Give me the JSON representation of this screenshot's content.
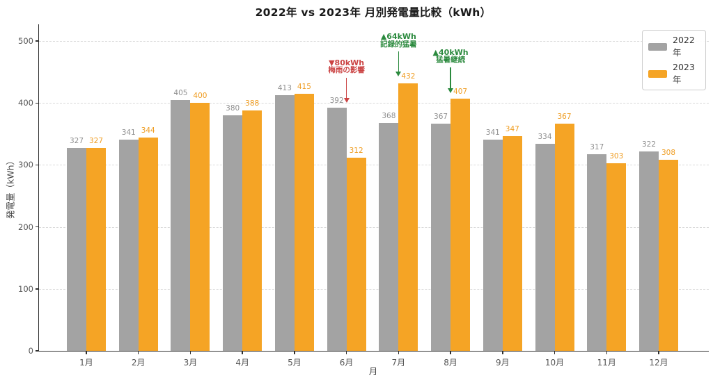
{
  "chart_data": {
    "type": "bar",
    "title": "2022年 vs 2023年 月別発電量比較（kWh）",
    "xlabel": "月",
    "ylabel": "発電量（kWh）",
    "ylim": [
      0,
      527
    ],
    "yticks": [
      0,
      100,
      200,
      300,
      400,
      500
    ],
    "grid": "horizontal-dashed",
    "legend_position": "upper-right",
    "categories": [
      "1月",
      "2月",
      "3月",
      "4月",
      "5月",
      "6月",
      "7月",
      "8月",
      "9月",
      "10月",
      "11月",
      "12月"
    ],
    "series": [
      {
        "name": "2022年",
        "color": "#a3a3a3",
        "label_color": "#8f8f8f",
        "values": [
          327,
          341,
          405,
          380,
          413,
          392,
          368,
          367,
          341,
          334,
          317,
          322
        ]
      },
      {
        "name": "2023年",
        "color": "#f5a425",
        "label_color": "#ef9c20",
        "values": [
          327,
          344,
          400,
          388,
          415,
          312,
          432,
          407,
          347,
          367,
          303,
          308
        ]
      }
    ],
    "annotations": [
      {
        "line1": "▼80kWh",
        "line2": "梅雨の影響",
        "color": "#cb4343",
        "month_index": 5,
        "text_top_kwh": 471,
        "arrow_from_kwh": 441,
        "arrow_tip_kwh": 400
      },
      {
        "line1": "▲64kWh",
        "line2": "記録的猛暑",
        "color": "#2b8a3e",
        "month_index": 6,
        "text_top_kwh": 513,
        "arrow_from_kwh": 483,
        "arrow_tip_kwh": 443
      },
      {
        "line1": "▲40kWh",
        "line2": "猛暑継続",
        "color": "#2b8a3e",
        "month_index": 7,
        "text_top_kwh": 488,
        "arrow_from_kwh": 457,
        "arrow_tip_kwh": 416
      }
    ]
  }
}
